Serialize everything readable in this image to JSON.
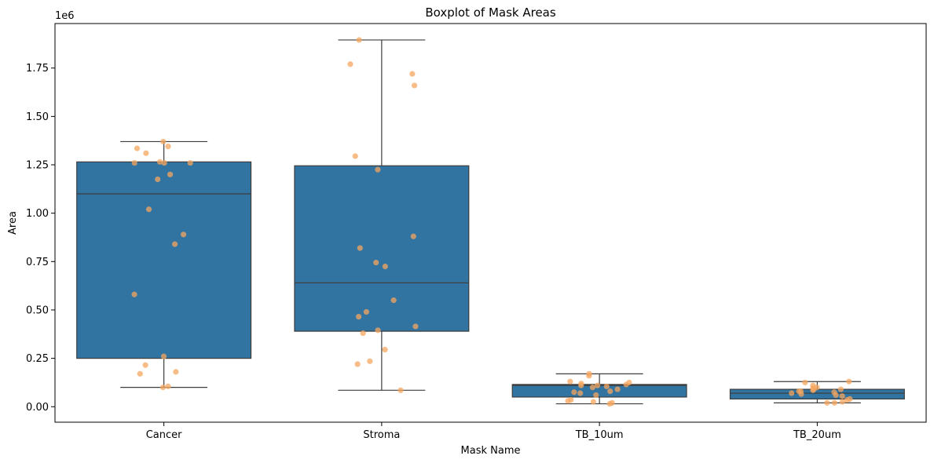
{
  "chart_data": {
    "type": "box",
    "title": "Boxplot of Mask Areas",
    "xlabel": "Mask Name",
    "ylabel": "Area",
    "y_offset_label": "1e6",
    "ylim": [
      -0.08,
      1.98
    ],
    "y_ticks": [
      0.0,
      0.25,
      0.5,
      0.75,
      1.0,
      1.25,
      1.5,
      1.75
    ],
    "y_tick_labels": [
      "0.00",
      "0.25",
      "0.50",
      "0.75",
      "1.00",
      "1.25",
      "1.50",
      "1.75"
    ],
    "grid": false,
    "colors": {
      "box": "#3274a1",
      "edge": "#3d3d3d",
      "points": "#f5a55f"
    },
    "categories": [
      "Cancer",
      "Stroma",
      "TB_10um",
      "TB_20um"
    ],
    "boxes": [
      {
        "category": "Cancer",
        "whisker_low": 0.1,
        "q1": 0.25,
        "median": 1.1,
        "q3": 1.265,
        "whisker_high": 1.37
      },
      {
        "category": "Stroma",
        "whisker_low": 0.085,
        "q1": 0.39,
        "median": 0.64,
        "q3": 1.245,
        "whisker_high": 1.895
      },
      {
        "category": "TB_10um",
        "whisker_low": 0.015,
        "q1": 0.05,
        "median": 0.11,
        "q3": 0.115,
        "whisker_high": 0.17
      },
      {
        "category": "TB_20um",
        "whisker_low": 0.02,
        "q1": 0.04,
        "median": 0.07,
        "q3": 0.09,
        "whisker_high": 0.13
      }
    ],
    "points": [
      {
        "category": "Cancer",
        "values": [
          1.37,
          1.345,
          1.335,
          1.31,
          1.265,
          1.26,
          1.26,
          1.26,
          1.2,
          1.175,
          1.02,
          0.89,
          0.84,
          0.58,
          0.26,
          0.215,
          0.18,
          0.17,
          0.105,
          0.1
        ]
      },
      {
        "category": "Stroma",
        "values": [
          1.895,
          1.77,
          1.72,
          1.66,
          1.295,
          1.225,
          0.88,
          0.82,
          0.745,
          0.725,
          0.55,
          0.49,
          0.465,
          0.415,
          0.395,
          0.38,
          0.295,
          0.235,
          0.22,
          0.085
        ]
      },
      {
        "category": "TB_10um",
        "values": [
          0.17,
          0.16,
          0.13,
          0.125,
          0.12,
          0.115,
          0.11,
          0.11,
          0.105,
          0.1,
          0.09,
          0.08,
          0.075,
          0.07,
          0.06,
          0.035,
          0.03,
          0.025,
          0.02,
          0.015
        ]
      },
      {
        "category": "TB_20um",
        "values": [
          0.13,
          0.125,
          0.11,
          0.1,
          0.095,
          0.09,
          0.09,
          0.085,
          0.08,
          0.08,
          0.075,
          0.07,
          0.065,
          0.06,
          0.055,
          0.04,
          0.035,
          0.025,
          0.02,
          0.02
        ]
      }
    ]
  }
}
